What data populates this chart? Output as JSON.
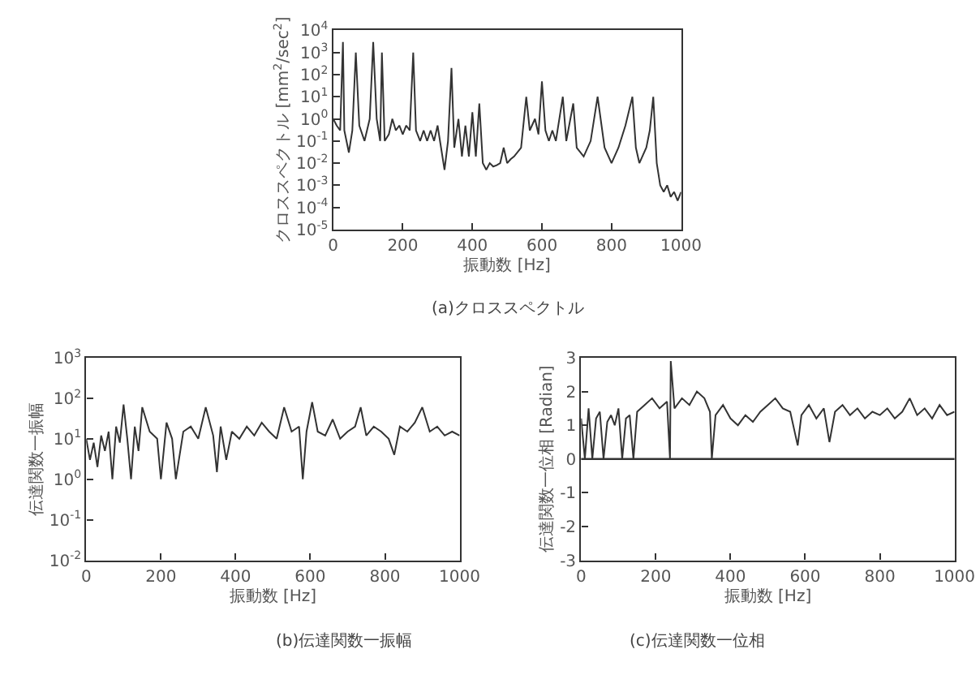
{
  "chart_data": [
    {
      "type": "line",
      "title": "(a)クロススペクトル",
      "xlabel": "振動数 [Hz]",
      "ylabel": "クロススペクトル [mm$^{2}$/sec$^{2}$]",
      "log": "y",
      "marker": "none",
      "line_style": "solid",
      "xlim": [
        0,
        1000
      ],
      "xticks": [
        0,
        200,
        400,
        600,
        800,
        1000
      ],
      "ylim": [
        1e-05,
        10000.0
      ],
      "yticks": [
        {
          "value": 1e-05,
          "label": "10$^{-5}$"
        },
        {
          "value": 0.0001,
          "label": "10$^{-4}$"
        },
        {
          "value": 0.001,
          "label": "10$^{-3}$"
        },
        {
          "value": 0.01,
          "label": "10$^{-2}$"
        },
        {
          "value": 0.1,
          "label": "10$^{-1}$"
        },
        {
          "value": 1,
          "label": "10$^{0}$"
        },
        {
          "value": 10,
          "label": "10$^{1}$"
        },
        {
          "value": 100,
          "label": "10$^{2}$"
        },
        {
          "value": 1000,
          "label": "10$^{3}$"
        },
        {
          "value": 10000,
          "label": "10$^{4}$"
        }
      ],
      "x": [
        0,
        10,
        20,
        28,
        32,
        45,
        55,
        65,
        75,
        90,
        105,
        115,
        125,
        135,
        140,
        148,
        160,
        170,
        180,
        190,
        200,
        210,
        220,
        230,
        238,
        250,
        260,
        270,
        280,
        290,
        300,
        310,
        320,
        330,
        340,
        348,
        360,
        370,
        380,
        390,
        400,
        410,
        420,
        430,
        440,
        450,
        460,
        470,
        480,
        490,
        500,
        510,
        520,
        540,
        555,
        565,
        580,
        590,
        600,
        610,
        620,
        630,
        640,
        660,
        670,
        690,
        700,
        720,
        740,
        760,
        780,
        800,
        820,
        840,
        860,
        870,
        880,
        900,
        910,
        920,
        930,
        940,
        950,
        960,
        970,
        980,
        990,
        1000
      ],
      "series": [
        {
          "color": "#333333",
          "values": [
            1,
            0.5,
            0.3,
            3000,
            0.3,
            0.03,
            0.3,
            1000,
            0.5,
            0.1,
            1,
            3000,
            1,
            0.1,
            1000,
            0.1,
            0.2,
            1,
            0.3,
            0.5,
            0.2,
            0.5,
            0.3,
            1000,
            0.3,
            0.1,
            0.3,
            0.1,
            0.3,
            0.1,
            0.5,
            0.05,
            0.005,
            0.1,
            200,
            0.05,
            1,
            0.02,
            0.5,
            0.02,
            2,
            0.02,
            5,
            0.01,
            0.005,
            0.01,
            0.007,
            0.008,
            0.01,
            0.05,
            0.01,
            0.015,
            0.02,
            0.05,
            10,
            0.3,
            1,
            0.2,
            50,
            0.3,
            0.1,
            0.3,
            0.1,
            10,
            0.1,
            5,
            0.05,
            0.02,
            0.1,
            10,
            0.05,
            0.01,
            0.05,
            0.5,
            10,
            0.05,
            0.01,
            0.05,
            0.3,
            10,
            0.01,
            0.001,
            0.0005,
            0.001,
            0.0003,
            0.0005,
            0.0002,
            0.0005
          ]
        }
      ]
    },
    {
      "type": "line",
      "title": "(b)伝達関数一振幅",
      "xlabel": "振動数 [Hz]",
      "ylabel": "伝達関数一振幅",
      "log": "y",
      "marker": "none",
      "line_style": "solid",
      "xlim": [
        0,
        1000
      ],
      "xticks": [
        0,
        200,
        400,
        600,
        800,
        1000
      ],
      "ylim": [
        0.01,
        1000.0
      ],
      "yticks": [
        {
          "value": 0.01,
          "label": "10$^{-2}$"
        },
        {
          "value": 0.1,
          "label": "10$^{-1}$"
        },
        {
          "value": 1,
          "label": "10$^{0}$"
        },
        {
          "value": 10,
          "label": "10$^{1}$"
        },
        {
          "value": 100,
          "label": "10$^{2}$"
        },
        {
          "value": 1000,
          "label": "10$^{3}$"
        }
      ],
      "x": [
        0,
        10,
        20,
        30,
        40,
        50,
        60,
        70,
        80,
        90,
        100,
        110,
        120,
        130,
        140,
        150,
        170,
        190,
        200,
        215,
        230,
        240,
        260,
        280,
        300,
        320,
        340,
        350,
        360,
        375,
        390,
        410,
        430,
        450,
        470,
        490,
        510,
        530,
        550,
        570,
        580,
        590,
        605,
        620,
        640,
        660,
        680,
        700,
        720,
        735,
        750,
        770,
        790,
        810,
        825,
        840,
        860,
        880,
        900,
        920,
        940,
        960,
        980,
        1000
      ],
      "series": [
        {
          "color": "#333333",
          "values": [
            10,
            3,
            8,
            2,
            12,
            5,
            15,
            1,
            20,
            8,
            70,
            10,
            1,
            20,
            5,
            60,
            15,
            10,
            1,
            25,
            10,
            1,
            15,
            20,
            10,
            60,
            12,
            1.5,
            20,
            3,
            15,
            10,
            20,
            12,
            25,
            15,
            10,
            60,
            15,
            20,
            1,
            15,
            80,
            15,
            12,
            30,
            10,
            15,
            20,
            60,
            12,
            20,
            15,
            10,
            4,
            20,
            15,
            25,
            60,
            15,
            20,
            12,
            15,
            12
          ]
        }
      ]
    },
    {
      "type": "line",
      "title": "(c)伝達関数一位相",
      "xlabel": "振動数 [Hz]",
      "ylabel": "伝達関数一位相 [Radian]",
      "marker": "none",
      "line_style": "solid",
      "xlim": [
        0,
        1000
      ],
      "xticks": [
        0,
        200,
        400,
        600,
        800,
        1000
      ],
      "ylim": [
        -3,
        3
      ],
      "yticks": [
        -3,
        -2,
        -1,
        0,
        1,
        2,
        3
      ],
      "ref_lines": [
        {
          "axis": "y",
          "value": 0,
          "color": "#333333"
        }
      ],
      "x": [
        0,
        10,
        20,
        30,
        40,
        50,
        60,
        70,
        80,
        90,
        100,
        110,
        120,
        130,
        140,
        150,
        170,
        190,
        210,
        230,
        238,
        240,
        250,
        270,
        290,
        310,
        330,
        345,
        350,
        360,
        380,
        400,
        420,
        440,
        460,
        480,
        500,
        520,
        540,
        560,
        580,
        590,
        610,
        630,
        650,
        665,
        680,
        700,
        720,
        740,
        760,
        780,
        800,
        820,
        840,
        860,
        880,
        900,
        920,
        940,
        960,
        980,
        1000
      ],
      "series": [
        {
          "color": "#333333",
          "values": [
            1.2,
            0,
            1.5,
            0,
            1.2,
            1.4,
            0,
            1.1,
            1.3,
            1.0,
            1.5,
            0,
            1.2,
            1.3,
            0,
            1.4,
            1.6,
            1.8,
            1.5,
            1.7,
            0,
            2.9,
            1.5,
            1.8,
            1.6,
            2.0,
            1.8,
            1.4,
            0,
            1.3,
            1.6,
            1.2,
            1.0,
            1.3,
            1.1,
            1.4,
            1.6,
            1.8,
            1.5,
            1.4,
            0.4,
            1.3,
            1.6,
            1.2,
            1.5,
            0.5,
            1.4,
            1.6,
            1.3,
            1.5,
            1.2,
            1.4,
            1.3,
            1.5,
            1.2,
            1.4,
            1.8,
            1.3,
            1.5,
            1.2,
            1.6,
            1.3,
            1.4
          ]
        }
      ]
    }
  ]
}
